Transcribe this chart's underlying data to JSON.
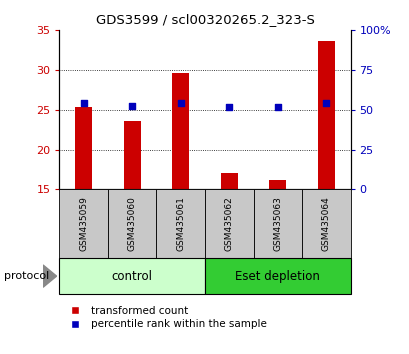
{
  "title": "GDS3599 / scl00320265.2_323-S",
  "samples": [
    "GSM435059",
    "GSM435060",
    "GSM435061",
    "GSM435062",
    "GSM435063",
    "GSM435064"
  ],
  "transformed_count": [
    25.3,
    23.6,
    29.6,
    17.0,
    16.2,
    33.6
  ],
  "percentile_rank": [
    54,
    52.5,
    54,
    51.5,
    51.5,
    54
  ],
  "ylim_left": [
    15,
    35
  ],
  "ylim_right": [
    0,
    100
  ],
  "yticks_left": [
    15,
    20,
    25,
    30,
    35
  ],
  "yticks_right": [
    0,
    25,
    50,
    75,
    100
  ],
  "ytick_labels_right": [
    "0",
    "25",
    "50",
    "75",
    "100%"
  ],
  "bar_color": "#cc0000",
  "dot_color": "#0000bb",
  "bar_bottom": 15,
  "groups": [
    {
      "label": "control",
      "indices": [
        0,
        1,
        2
      ],
      "color": "#ccffcc"
    },
    {
      "label": "Eset depletion",
      "indices": [
        3,
        4,
        5
      ],
      "color": "#33cc33"
    }
  ],
  "protocol_label": "protocol",
  "legend_items": [
    {
      "label": "transformed count",
      "color": "#cc0000",
      "marker": "s"
    },
    {
      "label": "percentile rank within the sample",
      "color": "#0000bb",
      "marker": "s"
    }
  ],
  "tick_label_color_left": "#cc0000",
  "tick_label_color_right": "#0000bb",
  "sample_bg_color": "#c8c8c8",
  "fig_width": 4.1,
  "fig_height": 3.54,
  "dpi": 100
}
